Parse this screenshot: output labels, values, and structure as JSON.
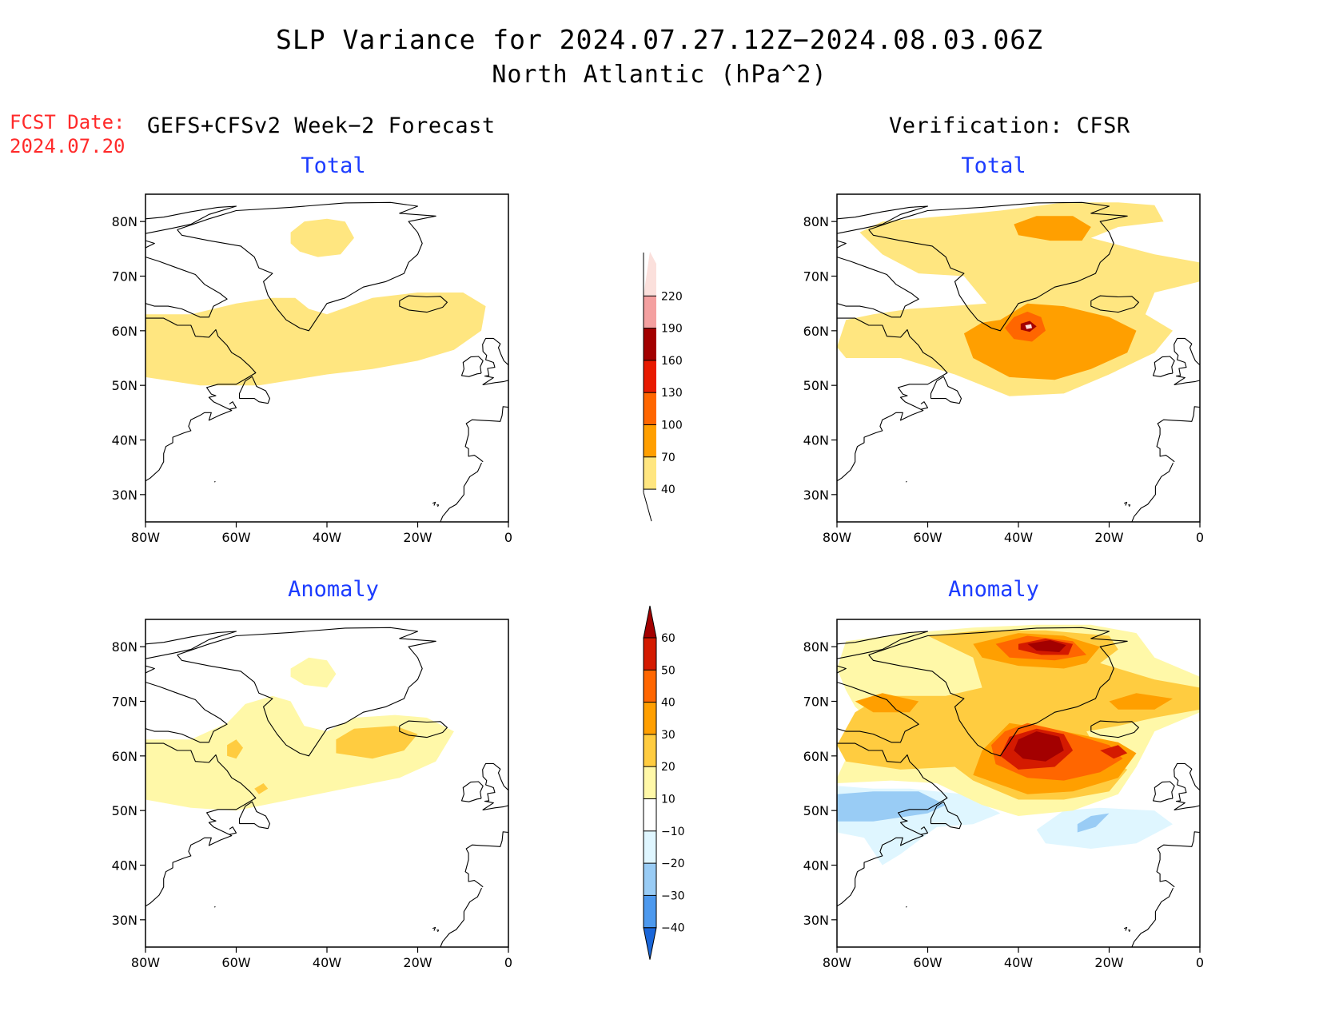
{
  "title": {
    "line1": "SLP Variance for 2024.07.27.12Z−2024.08.03.06Z",
    "line2": "North Atlantic (hPa^2)"
  },
  "fcst_date": {
    "label": "FCST Date:",
    "value": "2024.07.20"
  },
  "columns": {
    "forecast": "GEFS+CFSv2 Week−2 Forecast",
    "verification": "Verification: CFSR"
  },
  "panels": [
    {
      "id": "fcst-total",
      "subtitle": "Total"
    },
    {
      "id": "verif-total",
      "subtitle": "Total"
    },
    {
      "id": "fcst-anom",
      "subtitle": "Anomaly"
    },
    {
      "id": "verif-anom",
      "subtitle": "Anomaly"
    }
  ],
  "axes": {
    "lon_ticks": [
      "80W",
      "60W",
      "40W",
      "20W",
      "0"
    ],
    "lat_ticks": [
      "80N",
      "70N",
      "60N",
      "50N",
      "40N",
      "30N"
    ],
    "lon_range": [
      -80,
      0
    ],
    "lat_range": [
      25,
      85
    ]
  },
  "colorbar_total": {
    "levels": [
      "40",
      "70",
      "100",
      "130",
      "160",
      "190",
      "220"
    ],
    "colors": [
      "#ffe680",
      "#ff9f00",
      "#ff6600",
      "#e81a00",
      "#a30000",
      "#f4a0a0",
      "#fbe0dc"
    ]
  },
  "colorbar_anomaly": {
    "levels": [
      "−40",
      "−30",
      "−20",
      "−10",
      "10",
      "20",
      "30",
      "40",
      "50",
      "60"
    ],
    "colors": [
      "#1a66d9",
      "#4d99ee",
      "#99ccf5",
      "#dff6ff",
      "#ffffff",
      "#fff8a8",
      "#ffcc40",
      "#ff9f00",
      "#ff6600",
      "#d41a00",
      "#a30000"
    ]
  },
  "colors": {
    "fcst_red": "#ff2a2a",
    "subtitle_blue": "#1c3cff"
  }
}
